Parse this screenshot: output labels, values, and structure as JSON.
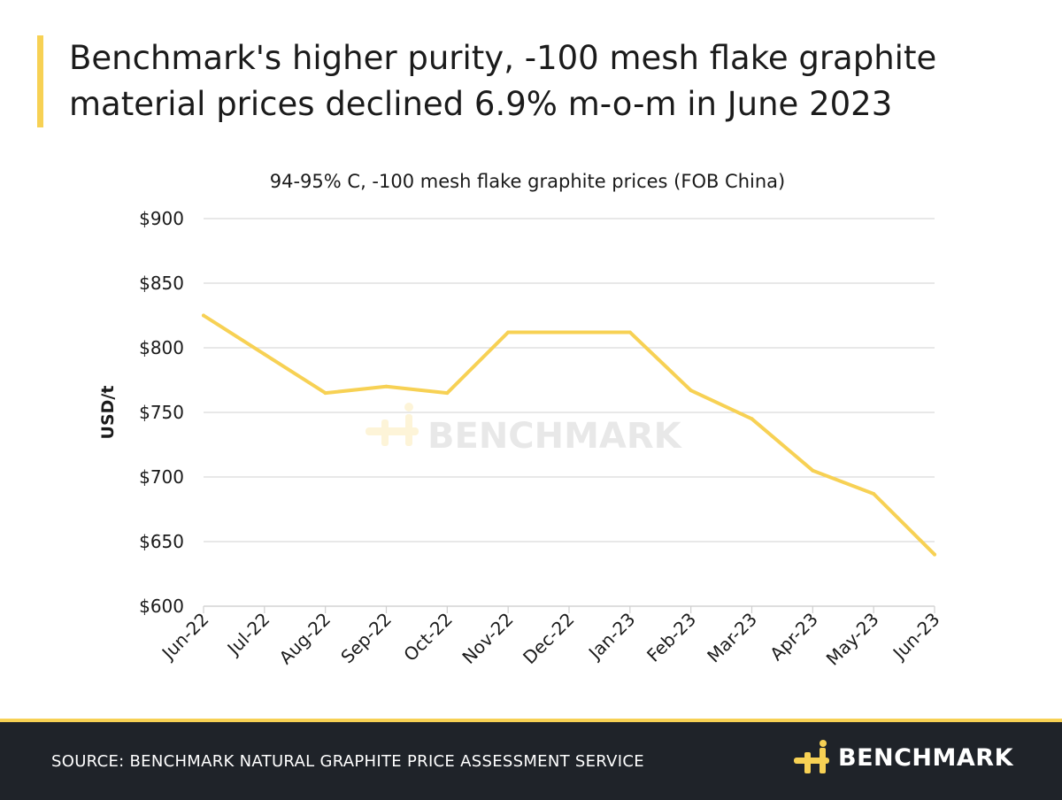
{
  "headline": {
    "line1": "Benchmark's higher purity, -100 mesh flake graphite",
    "line2": "material prices declined 6.9% m-o-m in June 2023"
  },
  "chart_data": {
    "type": "line",
    "title": "94-95% C, -100 mesh flake graphite prices (FOB China)",
    "ylabel": "USD/t",
    "xlabel": "",
    "categories": [
      "Jun-22",
      "Jul-22",
      "Aug-22",
      "Sep-22",
      "Oct-22",
      "Nov-22",
      "Dec-22",
      "Jan-23",
      "Feb-23",
      "Mar-23",
      "Apr-23",
      "May-23",
      "Jun-23"
    ],
    "series": [
      {
        "values": [
          825,
          795,
          765,
          770,
          765,
          812,
          812,
          812,
          767,
          745,
          705,
          687,
          640
        ]
      }
    ],
    "ylim": [
      600,
      900
    ],
    "yticks": [
      600,
      650,
      700,
      750,
      800,
      850,
      900
    ],
    "ytick_labels": [
      "$600",
      "$650",
      "$700",
      "$750",
      "$800",
      "$850",
      "$900"
    ],
    "grid": true,
    "line_color": "#f7d154",
    "watermark": "BENCHMARK"
  },
  "footer": {
    "source": "SOURCE: BENCHMARK NATURAL GRAPHITE PRICE ASSESSMENT SERVICE",
    "brand": "BENCHMARK"
  },
  "colors": {
    "accent": "#f7d154",
    "footer_bg": "#1f2329",
    "grid": "#d9d9d9"
  }
}
